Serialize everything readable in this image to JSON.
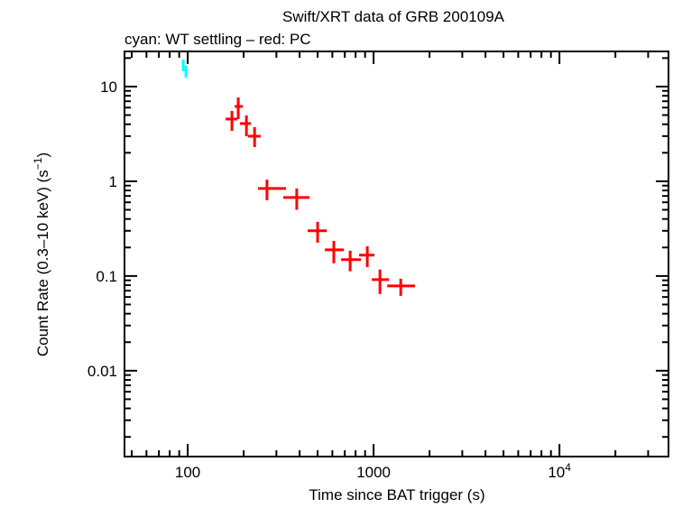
{
  "chart_data": {
    "type": "scatter",
    "title": "Swift/XRT data of GRB 200109A",
    "subtitle": "cyan: WT settling – red: PC",
    "xlabel": "Time since BAT trigger (s)",
    "ylabel": "Count Rate (0.3–10 keV) (s",
    "ylabel_sup": "−1",
    "ylabel_end": ")",
    "x_scale": "log",
    "y_scale": "log",
    "xlim": [
      45.7,
      38600
    ],
    "ylim": [
      0.00124,
      23.5
    ],
    "x_ticks": [
      {
        "value": 100,
        "label": "100"
      },
      {
        "value": 1000,
        "label": "1000"
      },
      {
        "value": 10000,
        "label": "10",
        "sup": "4"
      }
    ],
    "y_ticks": [
      {
        "value": 10,
        "label": "10"
      },
      {
        "value": 1,
        "label": "1"
      },
      {
        "value": 0.1,
        "label": "0.1"
      },
      {
        "value": 0.01,
        "label": "0.01"
      }
    ],
    "grid": false,
    "series": [
      {
        "name": "WT settling",
        "color": "#00ffff",
        "points": [
          {
            "x": 94.6,
            "y": 16.6,
            "xlo": 93.5,
            "xhi": 95.7,
            "ylo": 14.5,
            "yhi": 19.3
          },
          {
            "x": 97.8,
            "y": 14.5,
            "xlo": 96.5,
            "xhi": 99.0,
            "ylo": 12.4,
            "yhi": 16.6
          }
        ]
      },
      {
        "name": "PC",
        "color": "#ff0000",
        "points": [
          {
            "x": 173,
            "y": 4.54,
            "xlo": 160,
            "xhi": 185,
            "ylo": 3.41,
            "yhi": 5.53
          },
          {
            "x": 187,
            "y": 6.17,
            "xlo": 179,
            "xhi": 198,
            "ylo": 4.54,
            "yhi": 7.69
          },
          {
            "x": 207,
            "y": 4.07,
            "xlo": 191,
            "xhi": 219,
            "ylo": 2.99,
            "yhi": 4.96
          },
          {
            "x": 229,
            "y": 2.99,
            "xlo": 211,
            "xhi": 247,
            "ylo": 2.3,
            "yhi": 3.73
          },
          {
            "x": 267,
            "y": 0.84,
            "xlo": 239,
            "xhi": 338,
            "ylo": 0.63,
            "yhi": 1.04
          },
          {
            "x": 386,
            "y": 0.674,
            "xlo": 327,
            "xhi": 452,
            "ylo": 0.5,
            "yhi": 0.84
          },
          {
            "x": 500,
            "y": 0.3,
            "xlo": 442,
            "xhi": 560,
            "ylo": 0.225,
            "yhi": 0.373
          },
          {
            "x": 611,
            "y": 0.189,
            "xlo": 547,
            "xhi": 692,
            "ylo": 0.136,
            "yhi": 0.235
          },
          {
            "x": 748,
            "y": 0.149,
            "xlo": 669,
            "xhi": 855,
            "ylo": 0.112,
            "yhi": 0.185
          },
          {
            "x": 925,
            "y": 0.166,
            "xlo": 836,
            "xhi": 1011,
            "ylo": 0.124,
            "yhi": 0.206
          },
          {
            "x": 1082,
            "y": 0.0916,
            "xlo": 978,
            "xhi": 1210,
            "ylo": 0.0646,
            "yhi": 0.117
          },
          {
            "x": 1400,
            "y": 0.0786,
            "xlo": 1184,
            "xhi": 1671,
            "ylo": 0.0617,
            "yhi": 0.0936
          }
        ]
      }
    ]
  }
}
